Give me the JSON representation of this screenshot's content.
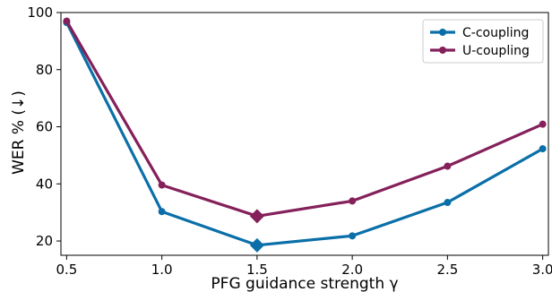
{
  "chart_data": {
    "type": "line",
    "title": "",
    "xlabel": "PFG guidance strength γ",
    "ylabel": "WER % (↓)",
    "x": [
      0.5,
      1.0,
      1.5,
      2.0,
      2.5,
      3.0
    ],
    "x_ticks": [
      "0.5",
      "1.0",
      "1.5",
      "2.0",
      "2.5",
      "3.0"
    ],
    "y_ticks": [
      "20",
      "40",
      "60",
      "80",
      "100"
    ],
    "xlim": [
      0.47,
      3.03
    ],
    "ylim": [
      15,
      100
    ],
    "grid": false,
    "legend_position": "top-right",
    "series": [
      {
        "name": "C-coupling",
        "color": "#0a6fa8",
        "values": [
          96.5,
          30.3,
          18.5,
          21.8,
          33.5,
          52.3
        ],
        "highlight_x": 1.5
      },
      {
        "name": "U-coupling",
        "color": "#84205a",
        "values": [
          97.0,
          39.6,
          28.7,
          34.0,
          46.2,
          60.9
        ],
        "highlight_x": 1.5
      }
    ]
  }
}
